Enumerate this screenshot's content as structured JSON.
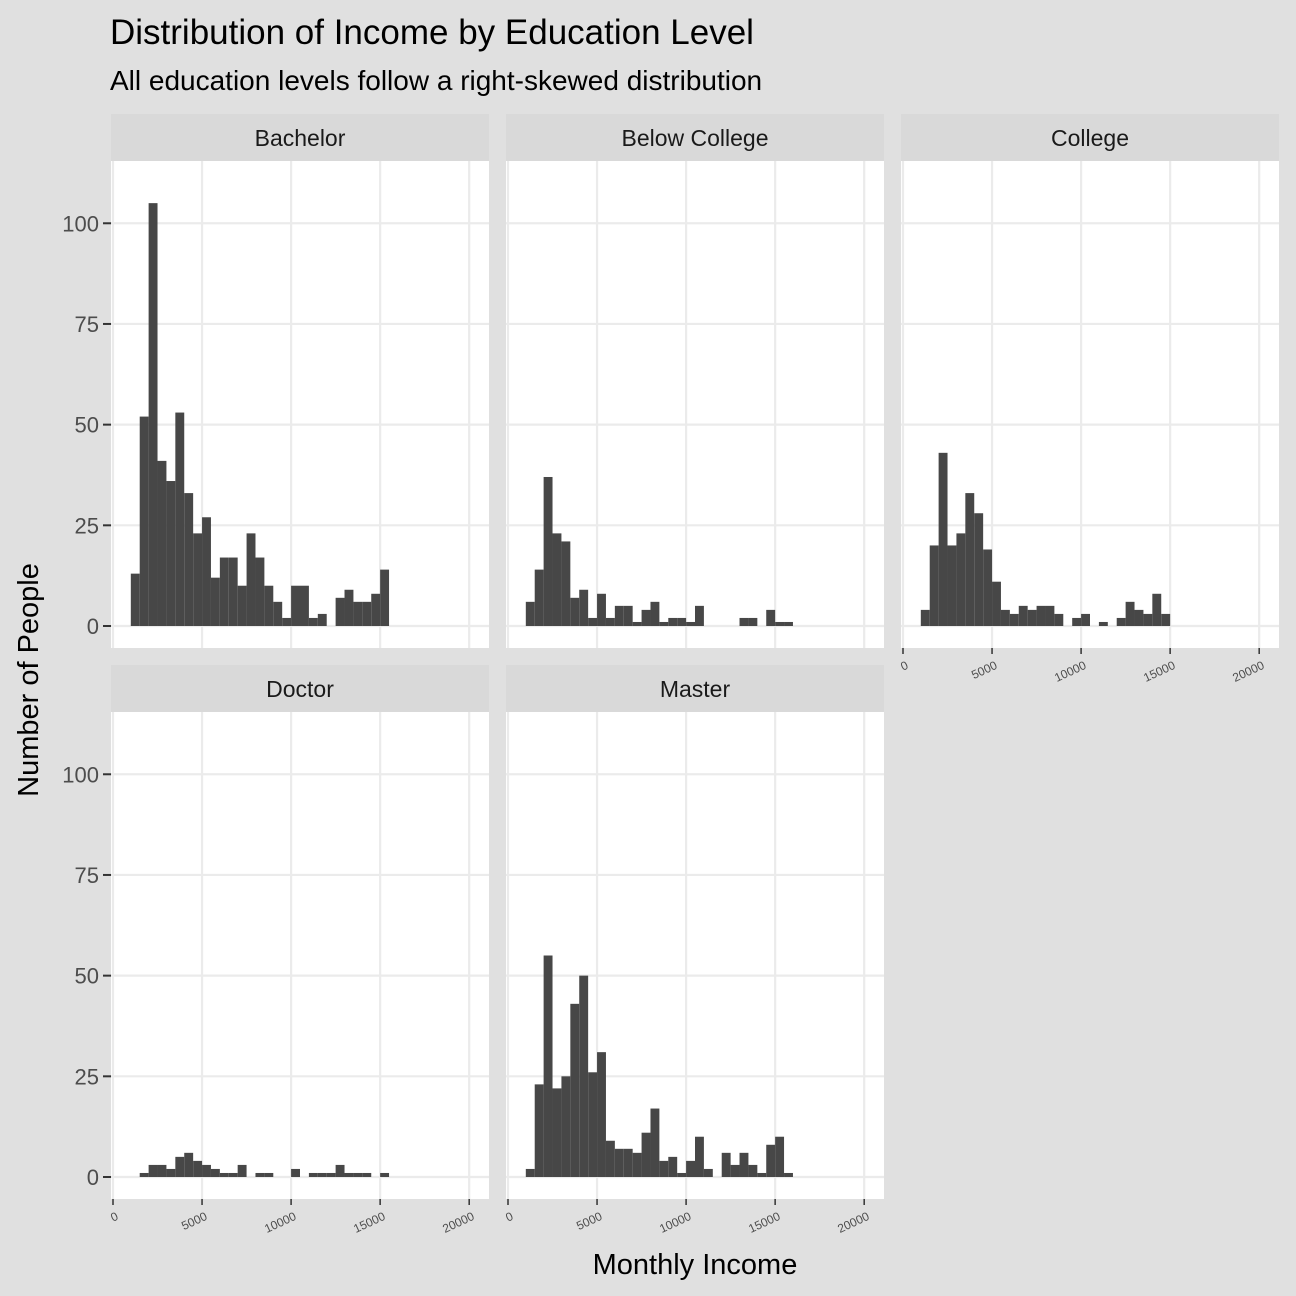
{
  "chart_data": {
    "type": "bar",
    "title": "Distribution of Income by Education Level",
    "subtitle": "All education levels follow a right-skewed distribution",
    "xlabel": "Monthly Income",
    "ylabel": "Number of People",
    "xlim": [
      0,
      21000
    ],
    "ylim": [
      0,
      110
    ],
    "x_ticks": [
      0,
      5000,
      10000,
      15000,
      20000
    ],
    "x_tick_labels": [
      "0",
      "5000",
      "10000",
      "15000",
      "20000"
    ],
    "y_ticks": [
      0,
      25,
      50,
      75,
      100
    ],
    "y_tick_labels": [
      "0",
      "25",
      "50",
      "75",
      "100"
    ],
    "bin_width": 500,
    "bin_start": 1000,
    "grid": true,
    "bar_color": "#474747",
    "panel_background": "#ffffff",
    "grid_color": "#ebebeb",
    "strip_background": "#d9d9d9",
    "facets": [
      {
        "name": "Bachelor",
        "values": [
          13,
          52,
          105,
          41,
          36,
          53,
          33,
          23,
          27,
          12,
          17,
          17,
          10,
          23,
          17,
          10,
          6,
          2,
          10,
          10,
          2,
          3,
          0,
          7,
          9,
          6,
          6,
          8,
          14
        ]
      },
      {
        "name": "Below College",
        "values": [
          6,
          14,
          37,
          23,
          21,
          7,
          9,
          2,
          8,
          2,
          5,
          5,
          1,
          4,
          6,
          1,
          2,
          2,
          1,
          5,
          0,
          0,
          0,
          0,
          2,
          2,
          0,
          4,
          1,
          1
        ]
      },
      {
        "name": "College",
        "values": [
          4,
          20,
          43,
          20,
          23,
          33,
          28,
          19,
          11,
          4,
          3,
          5,
          4,
          5,
          5,
          3,
          0,
          2,
          3,
          0,
          1,
          0,
          2,
          6,
          4,
          3,
          8,
          3
        ]
      },
      {
        "name": "Doctor",
        "values": [
          0,
          1,
          3,
          3,
          2,
          5,
          6,
          4,
          3,
          2,
          1,
          1,
          3,
          0,
          1,
          1,
          0,
          0,
          2,
          0,
          1,
          1,
          1,
          3,
          1,
          1,
          1,
          0,
          1
        ]
      },
      {
        "name": "Master",
        "values": [
          2,
          23,
          55,
          22,
          25,
          43,
          50,
          26,
          31,
          9,
          7,
          7,
          6,
          11,
          17,
          4,
          5,
          1,
          4,
          10,
          2,
          0,
          6,
          3,
          6,
          3,
          1,
          8,
          10,
          1
        ]
      }
    ]
  }
}
